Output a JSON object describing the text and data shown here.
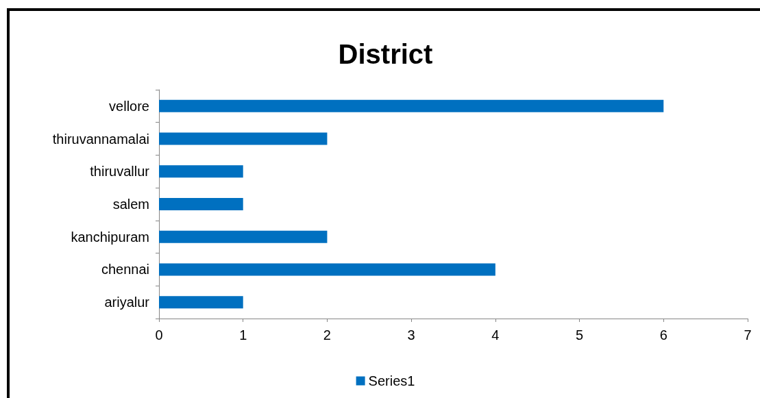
{
  "chart_data": {
    "type": "bar",
    "orientation": "horizontal",
    "title": "District",
    "categories": [
      "vellore",
      "thiruvannamalai",
      "thiruvallur",
      "salem",
      "kanchipuram",
      "chennai",
      "ariyalur"
    ],
    "series": [
      {
        "name": "Series1",
        "color": "#0070c0",
        "values": [
          6,
          2,
          1,
          1,
          2,
          4,
          1
        ]
      }
    ],
    "xlim": [
      0,
      7
    ],
    "xticks": [
      0,
      1,
      2,
      3,
      4,
      5,
      6,
      7
    ],
    "grid": false,
    "legend": "bottom"
  }
}
